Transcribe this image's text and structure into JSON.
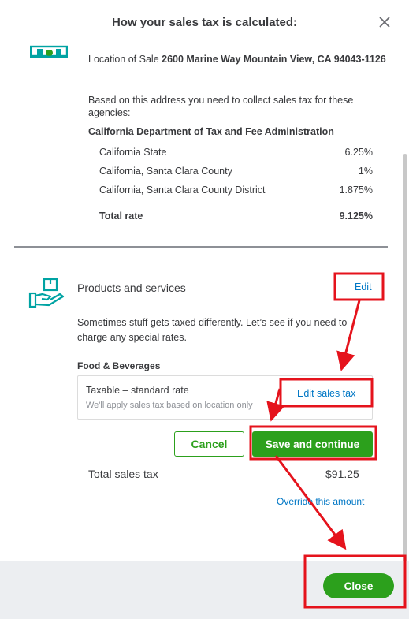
{
  "dialog": {
    "title": "How your sales tax is calculated:"
  },
  "location": {
    "label": "Location of Sale ",
    "address": "2600 Marine Way Mountain View, CA 94043-1126",
    "note": "Based on this address you need to collect sales tax for these agencies:"
  },
  "agency": {
    "name": "California Department of Tax and Fee Administration",
    "rates": [
      {
        "name": "California State",
        "rate": "6.25%"
      },
      {
        "name": "California, Santa Clara County",
        "rate": "1%"
      },
      {
        "name": "California, Santa Clara County District",
        "rate": "1.875%"
      }
    ],
    "total_label": "Total rate",
    "total_value": "9.125%"
  },
  "products": {
    "title": "Products and services",
    "edit_label": "Edit",
    "description": "Sometimes stuff gets taxed differently. Let’s see if you need to charge any special rates.",
    "category": "Food & Beverages",
    "tax_status": "Taxable – standard rate",
    "tax_note": "We'll apply sales tax based on location only",
    "edit_sales_tax_label": "Edit sales tax"
  },
  "actions": {
    "cancel_label": "Cancel",
    "save_label": "Save and continue"
  },
  "summary": {
    "total_label": "Total sales tax",
    "total_value": "$91.25",
    "override_label": "Override this amount"
  },
  "footer": {
    "close_label": "Close"
  },
  "colors": {
    "accent_green": "#2ca01c",
    "link_blue": "#0077c5",
    "icon_teal": "#00a3a3",
    "annotation_red": "#e5131c"
  }
}
